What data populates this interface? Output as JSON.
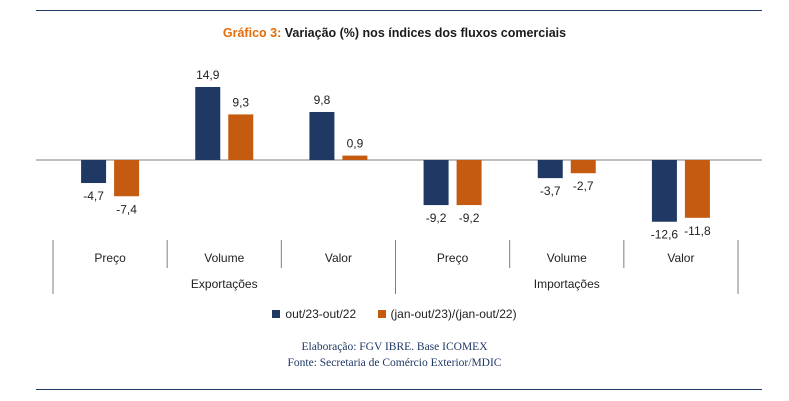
{
  "title": {
    "prefix": "Gráfico 3:",
    "text": "Variação (%) nos índices dos fluxos comerciais"
  },
  "colors": {
    "series1": "#1f3864",
    "series2": "#c55a11",
    "title_prefix": "#e46c0a",
    "rule": "#1f3864"
  },
  "chart_data": {
    "type": "bar",
    "categories": [
      "Preço",
      "Volume",
      "Valor",
      "Preço",
      "Volume",
      "Valor"
    ],
    "groups": [
      {
        "label": "Exportações",
        "categories": [
          "Preço",
          "Volume",
          "Valor"
        ]
      },
      {
        "label": "Importações",
        "categories": [
          "Preço",
          "Volume",
          "Valor"
        ]
      }
    ],
    "series": [
      {
        "name": "out/23-out/22",
        "color": "#1f3864",
        "values": [
          -4.7,
          14.9,
          9.8,
          -9.2,
          -3.7,
          -12.6
        ]
      },
      {
        "name": "(jan-out/23)/(jan-out/22)",
        "color": "#c55a11",
        "values": [
          -7.4,
          9.3,
          0.9,
          -9.2,
          -2.7,
          -11.8
        ]
      }
    ],
    "data_labels": [
      [
        "-4,7",
        "14,9",
        "9,8",
        "-9,2",
        "-3,7",
        "-12,6"
      ],
      [
        "-7,4",
        "9,3",
        "0,9",
        "-9,2",
        "-2,7",
        "-11,8"
      ]
    ],
    "ylim": [
      -16,
      20
    ],
    "grid": false,
    "legend": "bottom"
  },
  "source": {
    "line1": "Elaboração: FGV IBRE. Base ICOMEX",
    "line2": "Fonte: Secretaria de Comércio Exterior/MDIC"
  }
}
